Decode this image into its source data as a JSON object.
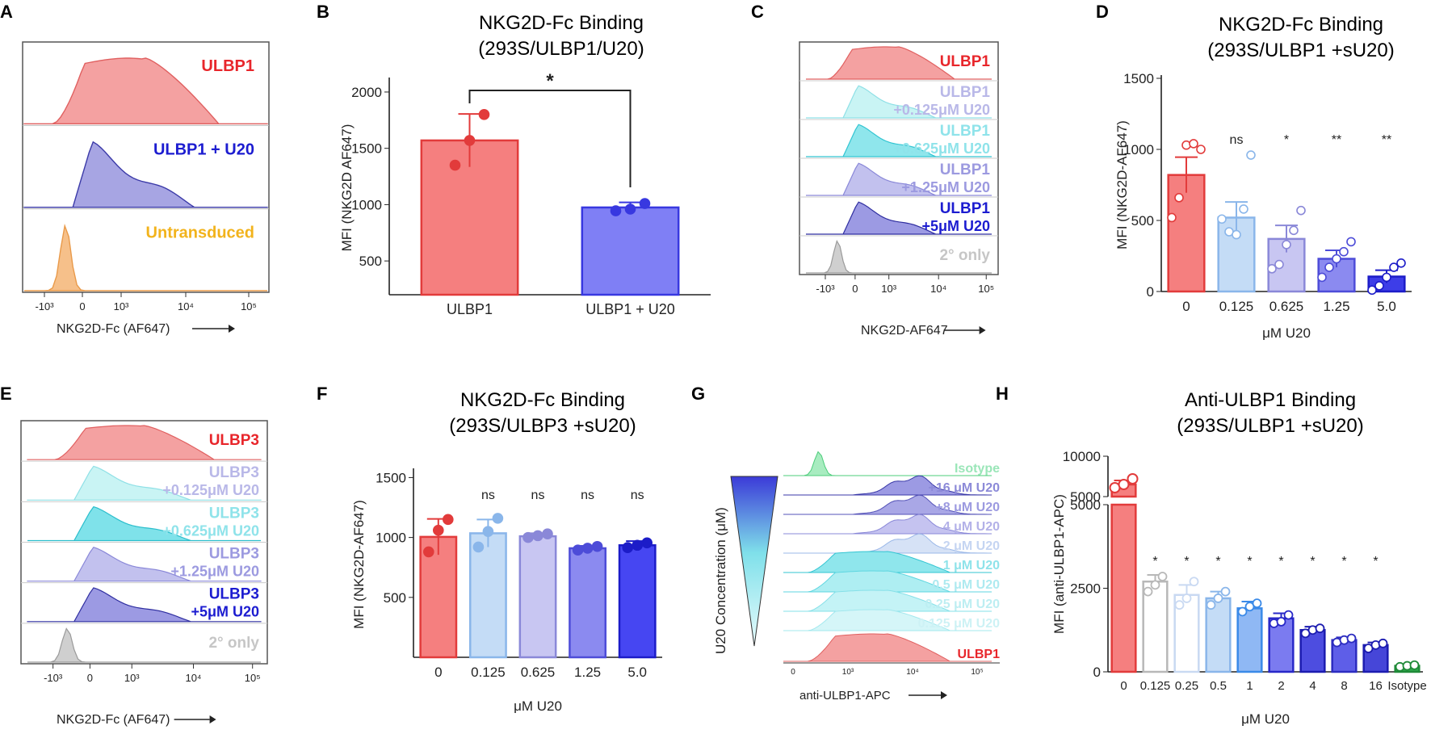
{
  "panels": {
    "A": {
      "letter": "A",
      "xlabel": "NKG2D-Fc (AF647)",
      "ticks": [
        "-10³",
        "0",
        "10³",
        "10⁴",
        "10⁵"
      ],
      "tracks": [
        {
          "label": "ULBP1",
          "fill": "#f4a1a1",
          "stroke": "#e06060",
          "label_color": "#e8262b"
        },
        {
          "label": "ULBP1 + U20",
          "fill": "#a7a5e3",
          "stroke": "#3b3aa8",
          "label_color": "#1c1cd0"
        },
        {
          "label": "Untransduced",
          "fill": "#f6c08a",
          "stroke": "#e99a4a",
          "label_color": "#f2b31c"
        }
      ]
    },
    "B": {
      "letter": "B",
      "chart_title": "NKG2D-Fc Binding",
      "chart_subtitle": "(293S/ULBP1/U20)",
      "sig": "*"
    },
    "C": {
      "letter": "C",
      "xlabel": "NKG2D-AF647",
      "ticks": [
        "-10³",
        "0",
        "10³",
        "10⁴",
        "10⁵"
      ],
      "tracks": [
        {
          "label1": "ULBP1",
          "label2": "",
          "fill": "#f4a1a1",
          "stroke": "#e06060",
          "label_color": "#e8262b"
        },
        {
          "label1": "ULBP1",
          "label2": "+0.125μM U20",
          "fill": "#c9f4f4",
          "stroke": "#8fe0e6",
          "label_color": "#b9b8e8"
        },
        {
          "label1": "ULBP1",
          "label2": "+0.625μM U20",
          "fill": "#8fe6ec",
          "stroke": "#33c5d2",
          "label_color": "#8fe3ea"
        },
        {
          "label1": "ULBP1",
          "label2": "+1.25μM U20",
          "fill": "#c2c1ee",
          "stroke": "#8a88d8",
          "label_color": "#9c9ae0"
        },
        {
          "label1": "ULBP1",
          "label2": "+5μM U20",
          "fill": "#9c9ae3",
          "stroke": "#2f2ea0",
          "label_color": "#1c1cd0"
        },
        {
          "label1": "2° only",
          "label2": "",
          "fill": "#cfcfcf",
          "stroke": "#9a9a9a",
          "label_color": "#c6c6c6"
        }
      ]
    },
    "D": {
      "letter": "D",
      "chart_title": "NKG2D-Fc Binding",
      "chart_subtitle": "(293S/ULBP1 +sU20)"
    },
    "E": {
      "letter": "E",
      "xlabel": "NKG2D-Fc (AF647)",
      "ticks": [
        "-10³",
        "0",
        "10³",
        "10⁴",
        "10⁵"
      ],
      "tracks": [
        {
          "label1": "ULBP3",
          "label2": "",
          "fill": "#f4a1a1",
          "stroke": "#e06060",
          "label_color": "#e8262b"
        },
        {
          "label1": "ULBP3",
          "label2": "+0.125μM U20",
          "fill": "#c9f4f4",
          "stroke": "#8fe0e6",
          "label_color": "#b9b8e8"
        },
        {
          "label1": "ULBP3",
          "label2": "+0.625μM U20",
          "fill": "#7fe2ea",
          "stroke": "#2bbecc",
          "label_color": "#8fe3ea"
        },
        {
          "label1": "ULBP3",
          "label2": "+1.25μM U20",
          "fill": "#c2c1ee",
          "stroke": "#8a88d8",
          "label_color": "#9c9ae0"
        },
        {
          "label1": "ULBP3",
          "label2": "+5μM U20",
          "fill": "#9c9ae3",
          "stroke": "#2f2ea0",
          "label_color": "#1c1cd0"
        },
        {
          "label1": "2° only",
          "label2": "",
          "fill": "#cfcfcf",
          "stroke": "#9a9a9a",
          "label_color": "#c6c6c6"
        }
      ]
    },
    "F": {
      "letter": "F",
      "chart_title": "NKG2D-Fc Binding",
      "chart_subtitle": "(293S/ULBP3 +sU20)"
    },
    "G": {
      "letter": "G",
      "ylabel": "U20 Concentration (μM)",
      "xlabel": "anti-ULBP1-APC",
      "ticks": [
        "0",
        "10³",
        "10⁴",
        "10⁵"
      ],
      "tracks": [
        {
          "label": "Isotype",
          "fill": "#a8ecc0",
          "stroke": "#4ccc7a",
          "label_color": "#9ae6b8"
        },
        {
          "label": "+16 μM U20",
          "fill": "#9c9ae3",
          "stroke": "#3b3aa8",
          "label_color": "#8c8ad8"
        },
        {
          "label": "+8 μM U20",
          "fill": "#a9a7e6",
          "stroke": "#5553b8",
          "label_color": "#9c9ae0"
        },
        {
          "label": "4 μM U20",
          "fill": "#c5c3f0",
          "stroke": "#8a88d8",
          "label_color": "#b3b1e8"
        },
        {
          "label": "2 μM U20",
          "fill": "#d6e2f6",
          "stroke": "#9bb8e8",
          "label_color": "#c5d5f2"
        },
        {
          "label": "1 μM U20",
          "fill": "#8fe6ec",
          "stroke": "#33c5d2",
          "label_color": "#8fe3ea"
        },
        {
          "label": "0.5 μM U20",
          "fill": "#aeeef2",
          "stroke": "#5fd6e0",
          "label_color": "#aeeaf0"
        },
        {
          "label": "0.25 μM U20",
          "fill": "#c4f3f6",
          "stroke": "#86e0e8",
          "label_color": "#bdeef2"
        },
        {
          "label": "0.125 μM U20",
          "fill": "#d5f6f8",
          "stroke": "#a3e8ee",
          "label_color": "#cdf2f5"
        },
        {
          "label": "ULBP1",
          "fill": "#f4a1a1",
          "stroke": "#e06060",
          "label_color": "#e8262b"
        }
      ]
    },
    "H": {
      "letter": "H",
      "chart_title": "Anti-ULBP1 Binding",
      "chart_subtitle": "(293S/ULBP1 +sU20)"
    }
  },
  "chart_data": [
    {
      "id": "B",
      "type": "bar",
      "title": "NKG2D-Fc Binding (293S/ULBP1/U20)",
      "xlabel": "",
      "ylabel": "MFI (NKG2D AF647)",
      "categories": [
        "ULBP1",
        "ULBP1 + U20"
      ],
      "values": [
        1570,
        975
      ],
      "errors": [
        235,
        45
      ],
      "points": [
        [
          1350,
          1570,
          1800
        ],
        [
          945,
          960,
          1010
        ]
      ],
      "colors": [
        "#f57f7f",
        "#7f7ff5"
      ],
      "edge_colors": [
        "#e23b3b",
        "#3838e0"
      ],
      "ylim": [
        200,
        2100
      ],
      "yticks": [
        500,
        1000,
        1500,
        2000
      ],
      "significance": [
        "",
        "*"
      ]
    },
    {
      "id": "D",
      "type": "bar",
      "title": "NKG2D-Fc Binding (293S/ULBP1 +sU20)",
      "xlabel": "μM U20",
      "ylabel": "MFI (NKG2D-AF647)",
      "categories": [
        "0",
        "0.125",
        "0.625",
        "1.25",
        "5.0"
      ],
      "values": [
        820,
        520,
        370,
        230,
        105
      ],
      "errors": [
        125,
        110,
        95,
        60,
        45
      ],
      "points": [
        [
          520,
          660,
          1030,
          1040,
          1000
        ],
        [
          510,
          420,
          400,
          580,
          960
        ],
        [
          160,
          190,
          330,
          430,
          570
        ],
        [
          100,
          170,
          230,
          280,
          350
        ],
        [
          10,
          40,
          100,
          170,
          200
        ]
      ],
      "colors": [
        "#f57f7f",
        "#c4dcf6",
        "#c8c6f2",
        "#8b8af0",
        "#3d3de8"
      ],
      "edge_colors": [
        "#e23b3b",
        "#8ab6ea",
        "#8a88d8",
        "#4d4cd8",
        "#1c1cc8"
      ],
      "ylim": [
        0,
        1500
      ],
      "yticks": [
        0,
        500,
        1000,
        1500
      ],
      "significance": [
        "",
        "ns",
        "*",
        "**",
        "**"
      ]
    },
    {
      "id": "F",
      "type": "bar",
      "title": "NKG2D-Fc Binding (293S/ULBP3 +sU20)",
      "xlabel": "μM U20",
      "ylabel": "MFI (NKG2D-AF647)",
      "categories": [
        "0",
        "0.125",
        "0.625",
        "1.25",
        "5.0"
      ],
      "values": [
        1005,
        1035,
        1010,
        910,
        935
      ],
      "errors": [
        150,
        115,
        25,
        20,
        35
      ],
      "points": [
        [
          880,
          1060,
          1150
        ],
        [
          920,
          1050,
          1160
        ],
        [
          1000,
          1015,
          1030
        ],
        [
          895,
          910,
          925
        ],
        [
          915,
          935,
          955
        ]
      ],
      "colors": [
        "#f57f7f",
        "#c4dcf6",
        "#c8c6f2",
        "#8b8af0",
        "#4646f2"
      ],
      "edge_colors": [
        "#e23b3b",
        "#8ab6ea",
        "#8a88d8",
        "#4d4cd8",
        "#1c1cc8"
      ],
      "ylim": [
        0,
        1550
      ],
      "yticks": [
        500,
        1000,
        1500
      ],
      "significance": [
        "",
        "ns",
        "ns",
        "ns",
        "ns"
      ]
    },
    {
      "id": "H",
      "type": "bar",
      "title": "Anti-ULBP1 Binding (293S/ULBP1 +sU20)",
      "xlabel": "μM U20",
      "ylabel": "MFI (anti-ULBP1-APC)",
      "categories": [
        "0",
        "0.125",
        "0.25",
        "0.5",
        "1",
        "2",
        "4",
        "8",
        "16",
        "Isotype"
      ],
      "values": [
        6500,
        2700,
        2300,
        2200,
        1900,
        1600,
        1250,
        950,
        800,
        180
      ],
      "errors": [
        500,
        200,
        300,
        200,
        200,
        150,
        100,
        80,
        80,
        30
      ],
      "points": [
        [
          6100,
          6500,
          7200
        ],
        [
          2400,
          2600,
          2850
        ],
        [
          2000,
          2200,
          2700
        ],
        [
          2000,
          2200,
          2400
        ],
        [
          1800,
          1950,
          2050
        ],
        [
          1450,
          1500,
          1700
        ],
        [
          1150,
          1250,
          1300
        ],
        [
          880,
          950,
          1000
        ],
        [
          700,
          800,
          850
        ],
        [
          150,
          180,
          200
        ]
      ],
      "colors": [
        "#f57f7f",
        "#ffffff",
        "#ffffff",
        "#c4dcf6",
        "#8fb8f4",
        "#7b7bf0",
        "#4d4de0",
        "#5e5ee8",
        "#4646d8",
        "#2ea84a"
      ],
      "edge_colors": [
        "#e23b3b",
        "#b8b8b8",
        "#c9d9f2",
        "#8ab6ea",
        "#3a8ae8",
        "#2828c8",
        "#1c1cb0",
        "#2c2cc0",
        "#1c1cb0",
        "#1f8a38"
      ],
      "ylim": [
        0,
        10000
      ],
      "yticks_lower": [
        0,
        2500,
        5000
      ],
      "yticks_upper": [
        5000,
        10000
      ],
      "axis_break": true,
      "significance": [
        "",
        "*",
        "*",
        "*",
        "*",
        "*",
        "*",
        "*",
        "*",
        ""
      ]
    }
  ]
}
